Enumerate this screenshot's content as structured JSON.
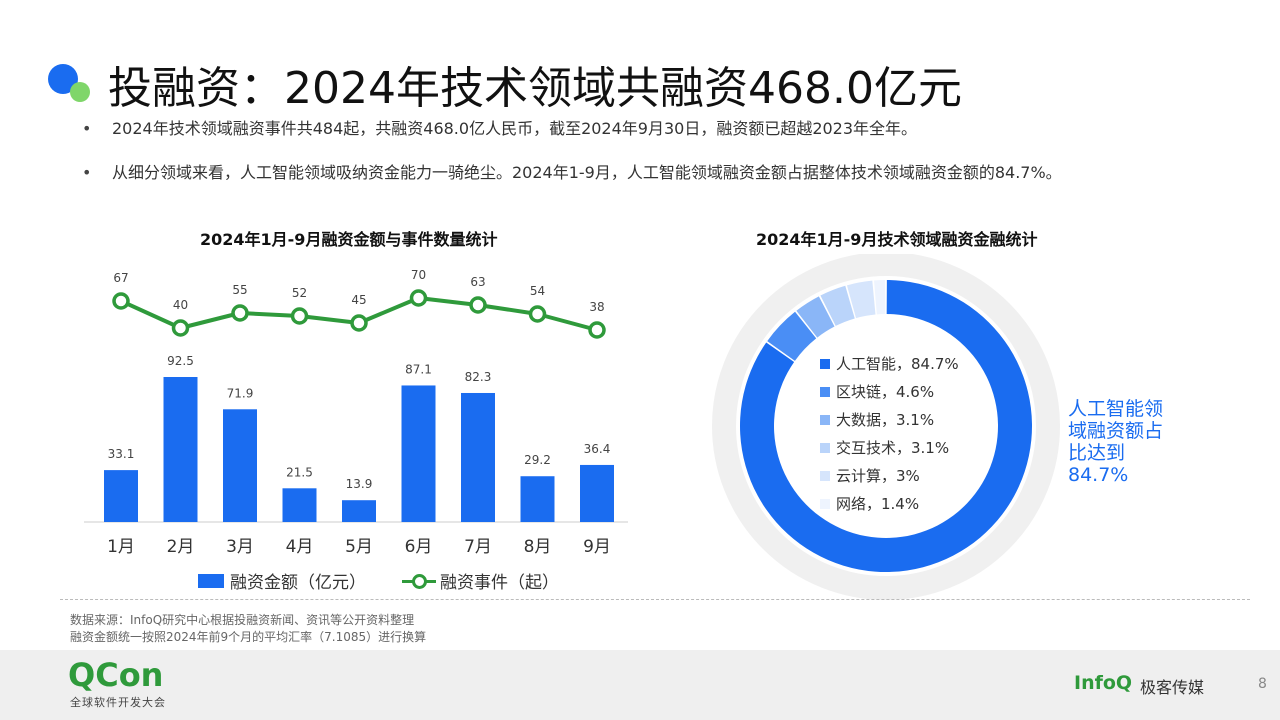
{
  "title": "投融资：2024年技术领域共融资468.0亿元",
  "bullets": [
    "2024年技术领域融资事件共484起，共融资468.0亿人民币，截至2024年9月30日，融资额已超越2023年全年。",
    "从细分领域来看，人工智能领域吸纳资金能力一骑绝尘。2024年1-9月，人工智能领域融资金额占据整体技术领域融资金额的84.7%。"
  ],
  "chart_data": [
    {
      "type": "bar",
      "title": "2024年1月-9月融资金额与事件数量统计",
      "categories": [
        "1月",
        "2月",
        "3月",
        "4月",
        "5月",
        "6月",
        "7月",
        "8月",
        "9月"
      ],
      "series": [
        {
          "name": "融资金额（亿元）",
          "type": "bar",
          "values": [
            33.1,
            92.5,
            71.9,
            21.5,
            13.9,
            87.1,
            82.3,
            29.2,
            36.4
          ],
          "color": "#1a6cf0"
        },
        {
          "name": "融资事件（起）",
          "type": "line",
          "values": [
            67,
            40,
            55,
            52,
            45,
            70,
            63,
            54,
            38
          ],
          "color": "#2f9a3b"
        }
      ],
      "legend_position": "bottom",
      "grid": false
    },
    {
      "type": "pie",
      "style": "donut",
      "title": "2024年1月-9月技术领域融资金融统计",
      "labels": [
        "人工智能，84.7%",
        "区块链，4.6%",
        "大数据，3.1%",
        "交互技术，3.1%",
        "云计算，3%",
        "网络，1.4%"
      ],
      "categories": [
        "人工智能",
        "区块链",
        "大数据",
        "交互技术",
        "云计算",
        "网络"
      ],
      "values": [
        84.7,
        4.6,
        3.1,
        3.1,
        3.0,
        1.4
      ],
      "colors": [
        "#1a6cf0",
        "#4a8ef5",
        "#8ab6f7",
        "#bad4fa",
        "#d6e5fc",
        "#eef4fe"
      ],
      "annotation": "人工智能领域融资额占比达到84.7%",
      "legend_position": "inside"
    }
  ],
  "footnotes": [
    "数据来源：InfoQ研究中心根据投融资新闻、资讯等公开资料整理",
    "融资金额统一按照2024年前9个月的平均汇率（7.1085）进行换算"
  ],
  "footer": {
    "qcon": "QCon",
    "qcon_sub": "全球软件开发大会",
    "infoq": "InfoQ",
    "infoq_sub": "极客传媒",
    "page": "8"
  }
}
